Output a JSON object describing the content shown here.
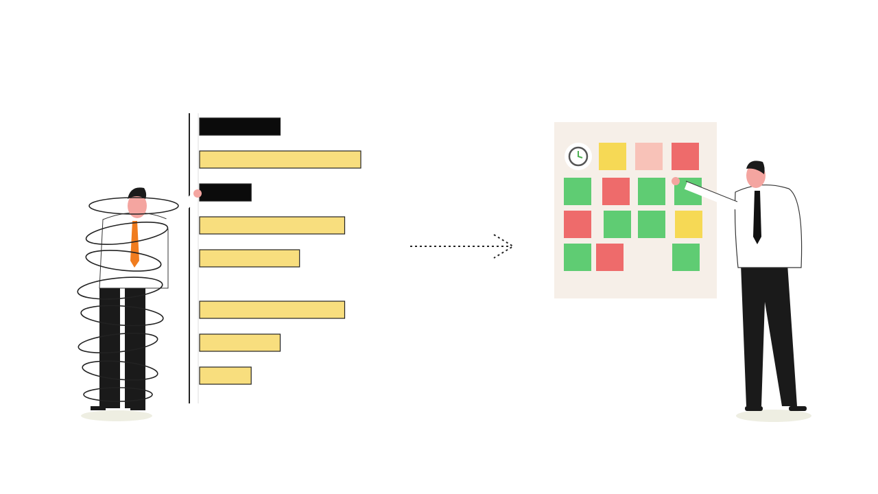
{
  "scene": {
    "left_panel": {
      "bars": [
        {
          "color": "black",
          "level": 0.5
        },
        {
          "color": "yellow",
          "level": 1.0
        },
        {
          "color": "black",
          "level": 0.32
        },
        {
          "color": "yellow",
          "level": 0.9
        },
        {
          "color": "yellow",
          "level": 0.62
        },
        {
          "color": "yellow",
          "level": 0.9
        },
        {
          "color": "yellow",
          "level": 0.5
        },
        {
          "color": "yellow",
          "level": 0.32
        }
      ],
      "person": "tangled-businessman"
    },
    "arrow": "dashed-arrow-right-icon",
    "right_panel": {
      "board": "sticky-note-board",
      "notes": [
        [
          "clock",
          "yellow",
          "pink",
          "red"
        ],
        [
          "green",
          "red",
          "green",
          "green"
        ],
        [
          "red",
          "green",
          "green",
          "yellow"
        ],
        [
          "green",
          "red",
          "",
          "green"
        ]
      ],
      "person": "presenting-businessman"
    }
  },
  "colors": {
    "black": "#0b0b0b",
    "yellow": "#f8de7e",
    "pink": "#f8c2b8",
    "red": "#ee6b6b",
    "green": "#5fcc73",
    "note_yellow": "#f6d955",
    "board": "#f6efe8",
    "tie_orange": "#f07c1e",
    "skin": "#f4a5a0",
    "shadow": "#eeeee2"
  }
}
